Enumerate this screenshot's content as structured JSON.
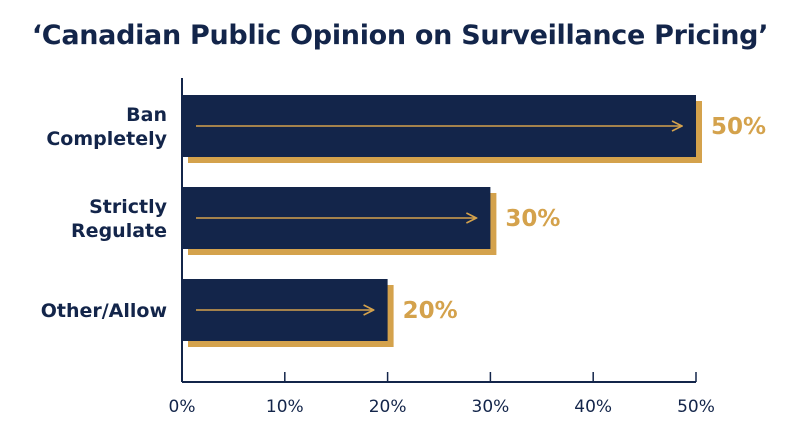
{
  "colors": {
    "bar": "#13254a",
    "shadow": "#d4a24c",
    "text": "#13254a",
    "accent": "#d4a24c"
  },
  "chart_data": {
    "type": "bar",
    "orientation": "horizontal",
    "title": "‘Canadian Public Opinion on Surveillance Pricing’",
    "categories": [
      [
        "Ban",
        "Completely"
      ],
      [
        "Strictly",
        "Regulate"
      ],
      [
        "Other/Allow"
      ]
    ],
    "values": [
      50,
      30,
      20
    ],
    "value_labels": [
      "50%",
      "30%",
      "20%"
    ],
    "xlim": [
      0,
      50
    ],
    "xticks": [
      0,
      10,
      20,
      30,
      40,
      50
    ],
    "xtick_labels": [
      "0%",
      "10%",
      "20%",
      "30%",
      "40%",
      "50%"
    ],
    "xlabel": "",
    "ylabel": "",
    "grid": false,
    "legend": "none"
  }
}
